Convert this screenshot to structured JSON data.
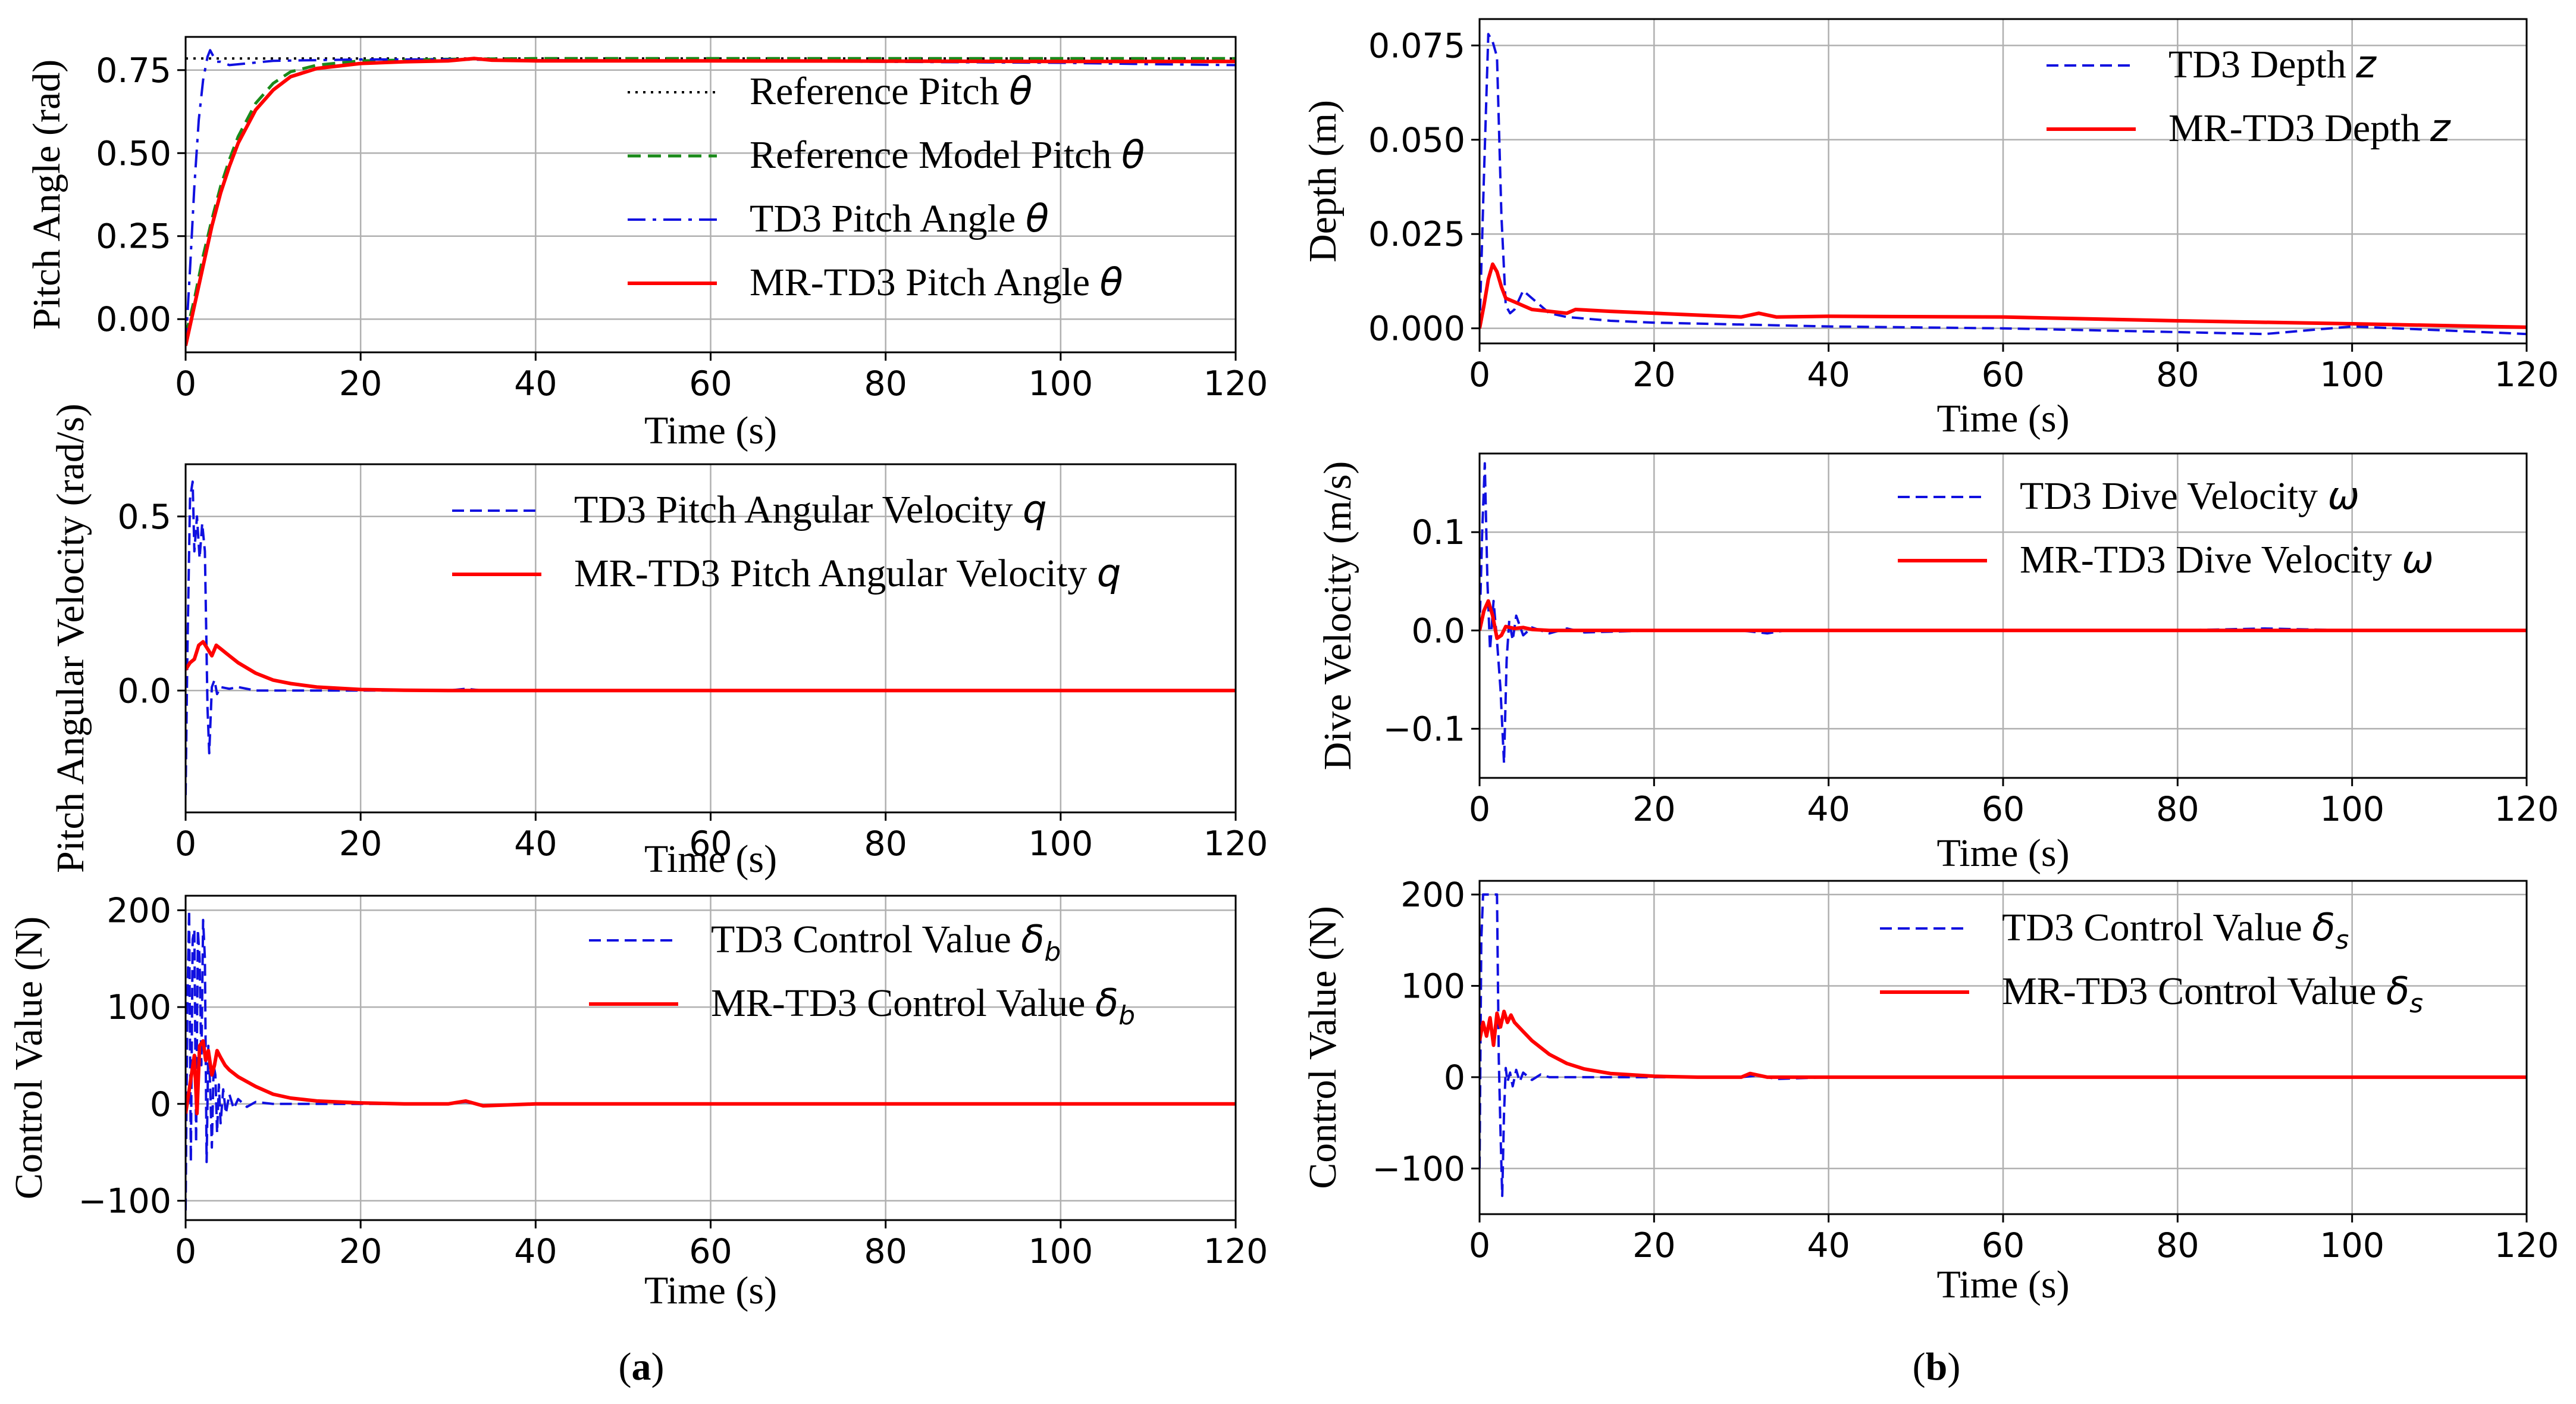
{
  "figure_labels": {
    "a": "(a)",
    "b": "(b)"
  },
  "styles": {
    "reference": {
      "color": "#000000",
      "dash": "4 9",
      "width": 4
    },
    "ref_model": {
      "color": "#1a8a1a",
      "dash": "22 12",
      "width": 5
    },
    "td3_dashdot": {
      "color": "#1010e0",
      "dash": "30 12 6 12",
      "width": 4
    },
    "td3_dash": {
      "color": "#1010e0",
      "dash": "20 10",
      "width": 4
    },
    "mr": {
      "color": "#ff0000",
      "dash": "",
      "width": 6
    }
  },
  "chart_data": [
    {
      "id": "pitch",
      "type": "line",
      "xlabel": "Time (s)",
      "ylabel": "Pitch Angle (rad)",
      "xlim": [
        0,
        120
      ],
      "ylim": [
        -0.1,
        0.85
      ],
      "xticks": [
        0,
        20,
        40,
        60,
        80,
        100,
        120
      ],
      "xtick_labels": [
        "0",
        "20",
        "40",
        "60",
        "80",
        "100",
        "120"
      ],
      "yticks": [
        0.0,
        0.25,
        0.5,
        0.75
      ],
      "ytick_labels": [
        "0.00",
        "0.25",
        "0.50",
        "0.75"
      ],
      "legend_position": "center-right",
      "series": [
        {
          "label": "Reference Pitch ",
          "symbol": "θ",
          "sub": "",
          "style": "reference",
          "x": [
            0,
            120
          ],
          "y": [
            0.785,
            0.785
          ]
        },
        {
          "label": "Reference Model Pitch ",
          "symbol": "θ",
          "sub": "",
          "style": "ref_model",
          "x": [
            0,
            1,
            2,
            3,
            4,
            5,
            6,
            8,
            10,
            12,
            15,
            20,
            30,
            40,
            60,
            80,
            100,
            120
          ],
          "y": [
            -0.05,
            0.06,
            0.19,
            0.3,
            0.4,
            0.48,
            0.55,
            0.65,
            0.71,
            0.745,
            0.765,
            0.778,
            0.783,
            0.785,
            0.785,
            0.785,
            0.785,
            0.785
          ]
        },
        {
          "label": "TD3 Pitch Angle ",
          "symbol": "θ",
          "sub": "",
          "style": "td3_dashdot",
          "x": [
            0,
            0.5,
            1,
            1.5,
            2,
            2.5,
            2.8,
            3.2,
            3.6,
            4,
            5,
            7,
            10,
            20,
            30,
            40,
            60,
            80,
            100,
            110,
            120
          ],
          "y": [
            -0.08,
            0.15,
            0.4,
            0.6,
            0.72,
            0.79,
            0.81,
            0.79,
            0.775,
            0.775,
            0.765,
            0.77,
            0.778,
            0.782,
            0.782,
            0.78,
            0.778,
            0.775,
            0.772,
            0.768,
            0.765
          ]
        },
        {
          "label": "MR-TD3 Pitch Angle ",
          "symbol": "θ",
          "sub": "",
          "style": "mr",
          "x": [
            0,
            0.5,
            1,
            2,
            3,
            4,
            5,
            6,
            8,
            10,
            12,
            15,
            20,
            25,
            30,
            33,
            35,
            40,
            60,
            80,
            100,
            120
          ],
          "y": [
            -0.08,
            -0.02,
            0.04,
            0.16,
            0.28,
            0.38,
            0.46,
            0.53,
            0.63,
            0.69,
            0.73,
            0.755,
            0.77,
            0.775,
            0.778,
            0.785,
            0.78,
            0.778,
            0.778,
            0.777,
            0.776,
            0.776
          ]
        }
      ]
    },
    {
      "id": "depth",
      "type": "line",
      "xlabel": "Time (s)",
      "ylabel": "Depth (m)",
      "xlim": [
        0,
        120
      ],
      "ylim": [
        -0.004,
        0.082
      ],
      "xticks": [
        0,
        20,
        40,
        60,
        80,
        100,
        120
      ],
      "xtick_labels": [
        "0",
        "20",
        "40",
        "60",
        "80",
        "100",
        "120"
      ],
      "yticks": [
        0.0,
        0.025,
        0.05,
        0.075
      ],
      "ytick_labels": [
        "0.000",
        "0.025",
        "0.050",
        "0.075"
      ],
      "legend_position": "upper-right",
      "series": [
        {
          "label": "TD3 Depth ",
          "symbol": "z",
          "sub": "",
          "style": "td3_dash",
          "x": [
            0,
            0.5,
            1,
            1.5,
            2,
            2.5,
            3,
            3.5,
            4,
            5,
            6,
            7,
            8,
            10,
            15,
            20,
            30,
            40,
            60,
            80,
            90,
            100,
            110,
            120
          ],
          "y": [
            0,
            0.04,
            0.078,
            0.076,
            0.072,
            0.03,
            0.006,
            0.004,
            0.005,
            0.01,
            0.008,
            0.006,
            0.004,
            0.003,
            0.002,
            0.0015,
            0.001,
            0.0005,
            0.0,
            -0.001,
            -0.0015,
            0.0005,
            -0.0005,
            -0.0015
          ]
        },
        {
          "label": "MR-TD3 Depth ",
          "symbol": "z",
          "sub": "",
          "style": "mr",
          "x": [
            0,
            0.5,
            1,
            1.5,
            2,
            2.5,
            3,
            4,
            5,
            6,
            8,
            10,
            11,
            15,
            20,
            30,
            32,
            34,
            40,
            60,
            80,
            100,
            120
          ],
          "y": [
            0,
            0.006,
            0.013,
            0.017,
            0.015,
            0.011,
            0.008,
            0.007,
            0.006,
            0.005,
            0.0045,
            0.004,
            0.005,
            0.0045,
            0.004,
            0.003,
            0.004,
            0.003,
            0.0032,
            0.003,
            0.002,
            0.0012,
            0.0003
          ]
        }
      ]
    },
    {
      "id": "qvel",
      "type": "line",
      "xlabel": "Time (s)",
      "ylabel": "Pitch Angular Velocity (rad/s)",
      "xlim": [
        0,
        120
      ],
      "ylim": [
        -0.35,
        0.65
      ],
      "xticks": [
        0,
        20,
        40,
        60,
        80,
        100,
        120
      ],
      "xtick_labels": [
        "0",
        "20",
        "40",
        "60",
        "80",
        "100",
        "120"
      ],
      "yticks": [
        0.0,
        0.5
      ],
      "ytick_labels": [
        "0.0",
        "0.5"
      ],
      "legend_position": "upper-right",
      "series": [
        {
          "label": "TD3 Pitch Angular Velocity ",
          "symbol": "q",
          "sub": "",
          "style": "td3_dash",
          "x": [
            0,
            0.2,
            0.5,
            0.8,
            1,
            1.3,
            1.6,
            1.9,
            2.2,
            2.5,
            2.7,
            3,
            3.3,
            3.6,
            4,
            5,
            6,
            8,
            10,
            20,
            30,
            32,
            34,
            40,
            120
          ],
          "y": [
            -0.3,
            0.1,
            0.55,
            0.6,
            0.4,
            0.5,
            0.38,
            0.48,
            0.4,
            -0.05,
            -0.18,
            0.01,
            0.03,
            -0.01,
            0.01,
            0.005,
            0.01,
            0.0,
            0.0,
            0.0,
            0.0,
            0.005,
            0.0,
            0.0,
            0.0
          ]
        },
        {
          "label": "MR-TD3 Pitch Angular Velocity ",
          "symbol": "q",
          "sub": "",
          "style": "mr",
          "x": [
            0,
            0.5,
            1,
            1.5,
            2,
            2.5,
            3,
            3.5,
            4,
            5,
            6,
            8,
            10,
            12,
            15,
            20,
            25,
            30,
            40,
            120
          ],
          "y": [
            0.06,
            0.08,
            0.09,
            0.13,
            0.14,
            0.12,
            0.1,
            0.13,
            0.12,
            0.1,
            0.08,
            0.05,
            0.03,
            0.02,
            0.01,
            0.003,
            0.001,
            0.0,
            0.0,
            0.0
          ]
        }
      ]
    },
    {
      "id": "dive",
      "type": "line",
      "xlabel": "Time (s)",
      "ylabel": "Dive Velocity (m/s)",
      "xlim": [
        0,
        120
      ],
      "ylim": [
        -0.15,
        0.18
      ],
      "xticks": [
        0,
        20,
        40,
        60,
        80,
        100,
        120
      ],
      "xtick_labels": [
        "0",
        "20",
        "40",
        "60",
        "80",
        "100",
        "120"
      ],
      "yticks": [
        -0.1,
        0.0,
        0.1
      ],
      "ytick_labels": [
        "−0.1",
        "0.0",
        "0.1"
      ],
      "legend_position": "upper-right",
      "series": [
        {
          "label": "TD3 Dive Velocity ",
          "symbol": "ω",
          "sub": "",
          "style": "td3_dash",
          "x": [
            0,
            0.3,
            0.6,
            0.9,
            1.2,
            1.6,
            2,
            2.4,
            2.8,
            3.1,
            3.4,
            3.8,
            4.2,
            5,
            6,
            8,
            10,
            12,
            20,
            30,
            33,
            35,
            40,
            80,
            90,
            100,
            120
          ],
          "y": [
            0.0,
            0.1,
            0.17,
            0.05,
            -0.02,
            0.03,
            -0.01,
            -0.06,
            -0.135,
            -0.03,
            0.01,
            -0.01,
            0.015,
            -0.005,
            0.003,
            -0.003,
            0.002,
            -0.002,
            0.0,
            0.0,
            -0.003,
            0.0,
            0.0,
            0.0,
            0.002,
            0.0,
            0.0
          ]
        },
        {
          "label": "MR-TD3 Dive Velocity ",
          "symbol": "ω",
          "sub": "",
          "style": "mr",
          "x": [
            0,
            0.5,
            1,
            1.5,
            2,
            2.5,
            3,
            4,
            5,
            6,
            8,
            10,
            15,
            20,
            120
          ],
          "y": [
            0.0,
            0.02,
            0.03,
            0.015,
            -0.008,
            -0.005,
            0.004,
            0.002,
            0.003,
            0.001,
            0.0,
            0.0,
            0.0,
            0.0,
            0.0
          ]
        }
      ]
    },
    {
      "id": "ctrl_b",
      "type": "line",
      "xlabel": "Time (s)",
      "ylabel": "Control Value (N)",
      "xlim": [
        0,
        120
      ],
      "ylim": [
        -120,
        215
      ],
      "xticks": [
        0,
        20,
        40,
        60,
        80,
        100,
        120
      ],
      "xtick_labels": [
        "0",
        "20",
        "40",
        "60",
        "80",
        "100",
        "120"
      ],
      "yticks": [
        -100,
        0,
        100,
        200
      ],
      "ytick_labels": [
        "−100",
        "0",
        "100",
        "200"
      ],
      "legend_position": "upper-right",
      "series": [
        {
          "label": "TD3 Control Value ",
          "symbol": "δ",
          "sub": "b",
          "style": "td3_dash",
          "x": [
            0,
            0.2,
            0.4,
            0.6,
            0.8,
            1,
            1.2,
            1.4,
            1.6,
            1.8,
            2,
            2.2,
            2.4,
            2.6,
            2.8,
            3,
            3.2,
            3.4,
            3.6,
            3.8,
            4,
            4.3,
            4.6,
            5,
            5.5,
            6,
            7,
            8,
            10,
            20,
            30,
            32,
            34,
            40,
            120
          ],
          "y": [
            -110,
            100,
            200,
            -60,
            170,
            180,
            -40,
            180,
            150,
            40,
            190,
            150,
            -60,
            60,
            20,
            -45,
            40,
            30,
            -30,
            20,
            -20,
            15,
            -10,
            10,
            -5,
            5,
            -3,
            2,
            0,
            0,
            0,
            2,
            -2,
            0,
            0
          ]
        },
        {
          "label": "MR-TD3 Control Value ",
          "symbol": "δ",
          "sub": "b",
          "style": "mr",
          "x": [
            0,
            0.5,
            1,
            1.3,
            1.6,
            2,
            2.3,
            2.6,
            3,
            3.3,
            3.6,
            4,
            4.5,
            5,
            6,
            8,
            10,
            12,
            15,
            20,
            25,
            30,
            32,
            34,
            40,
            120
          ],
          "y": [
            -10,
            20,
            50,
            -10,
            60,
            65,
            45,
            55,
            30,
            40,
            55,
            48,
            40,
            35,
            28,
            18,
            10,
            6,
            3,
            1,
            0,
            0,
            3,
            -2,
            0,
            0
          ]
        }
      ]
    },
    {
      "id": "ctrl_s",
      "type": "line",
      "xlabel": "Time (s)",
      "ylabel": "Control Value (N)",
      "xlim": [
        0,
        120
      ],
      "ylim": [
        -150,
        215
      ],
      "xticks": [
        0,
        20,
        40,
        60,
        80,
        100,
        120
      ],
      "xtick_labels": [
        "0",
        "20",
        "40",
        "60",
        "80",
        "100",
        "120"
      ],
      "yticks": [
        -100,
        0,
        100,
        200
      ],
      "ytick_labels": [
        "−100",
        "0",
        "100",
        "200"
      ],
      "legend_position": "upper-right",
      "series": [
        {
          "label": "TD3 Control Value ",
          "symbol": "δ",
          "sub": "s",
          "style": "td3_dash",
          "x": [
            0,
            0.2,
            0.4,
            0.6,
            1,
            1.5,
            2,
            2.2,
            2.4,
            2.6,
            2.8,
            3,
            3.2,
            3.5,
            3.8,
            4.2,
            4.6,
            5,
            6,
            7,
            8,
            10,
            20,
            30,
            32,
            34,
            40,
            120
          ],
          "y": [
            -100,
            150,
            200,
            200,
            200,
            200,
            200,
            20,
            -60,
            -130,
            -40,
            10,
            -5,
            5,
            -10,
            8,
            -5,
            5,
            -3,
            3,
            0,
            0,
            0,
            0,
            2,
            -2,
            0,
            0
          ]
        },
        {
          "label": "MR-TD3 Control Value ",
          "symbol": "δ",
          "sub": "s",
          "style": "mr",
          "x": [
            0,
            0.4,
            0.8,
            1.2,
            1.6,
            2,
            2.4,
            2.8,
            3.2,
            3.6,
            4,
            5,
            6,
            8,
            10,
            12,
            15,
            20,
            25,
            30,
            31,
            33,
            40,
            120
          ],
          "y": [
            40,
            60,
            45,
            65,
            35,
            70,
            55,
            72,
            60,
            68,
            60,
            50,
            40,
            25,
            15,
            9,
            4,
            1,
            0,
            0,
            4,
            0,
            0,
            0
          ]
        }
      ]
    }
  ]
}
